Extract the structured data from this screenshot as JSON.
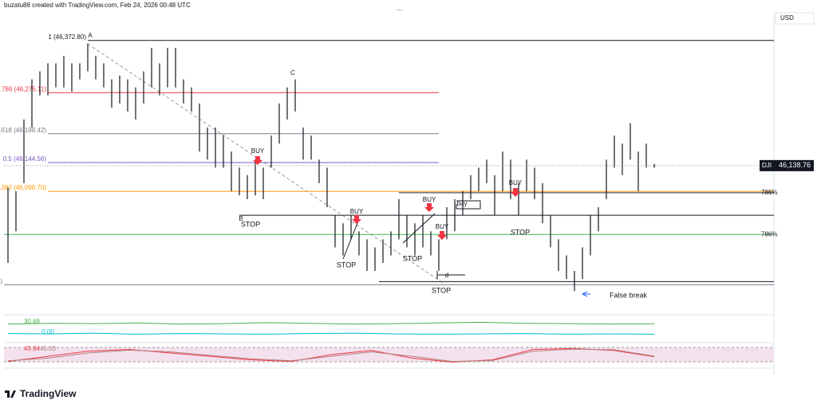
{
  "header": {
    "author_line": "buzatu88 created with TradingView.com, Feb 24, 2026 00:48 UTC",
    "currency": "USD",
    "brand": "TradingView"
  },
  "chart_data": {
    "type": "ohlc",
    "symbol": "DJI",
    "color": "#131722",
    "last_price": {
      "value": 46138.76,
      "label": "46,138.76"
    },
    "ylim": [
      45860,
      46426
    ],
    "highs": [
      46098,
      46091,
      46225,
      46300,
      46315,
      46330,
      46330,
      46344,
      46330,
      46330,
      46367,
      46344,
      46330,
      46300,
      46307,
      46300,
      46285,
      46315,
      46359,
      46330,
      46359,
      46359,
      46300,
      46285,
      46255,
      46210,
      46210,
      46195,
      46165,
      46135,
      46121,
      46150,
      46135,
      46195,
      46255,
      46285,
      46300,
      46210,
      46195,
      46150,
      46135,
      46046,
      46031,
      46046,
      46016,
      46001,
      45986,
      46001,
      46016,
      46076,
      46046,
      46031,
      46046,
      46016,
      46001,
      46061,
      46076,
      46091,
      46121,
      46135,
      46150,
      46121,
      46165,
      46150,
      46106,
      46150,
      46135,
      46106,
      46046,
      46001,
      45971,
      45942,
      45986,
      46046,
      46061,
      46150,
      46195,
      46180,
      46218,
      46165,
      46180,
      46142
    ],
    "lows": [
      45957,
      46016,
      46106,
      46210,
      46270,
      46270,
      46285,
      46285,
      46277,
      46300,
      46315,
      46300,
      46285,
      46247,
      46255,
      46240,
      46225,
      46255,
      46285,
      46270,
      46285,
      46285,
      46255,
      46240,
      46165,
      46150,
      46135,
      46135,
      46091,
      46083,
      46076,
      46083,
      46076,
      46135,
      46180,
      46225,
      46240,
      46150,
      46150,
      46106,
      46061,
      45986,
      45971,
      46001,
      45971,
      45942,
      45942,
      45957,
      45971,
      46001,
      45986,
      45971,
      45986,
      45971,
      45942,
      46001,
      46016,
      46046,
      46076,
      46091,
      46106,
      46046,
      46091,
      46076,
      46046,
      46091,
      46076,
      46031,
      45986,
      45942,
      45927,
      45904,
      45927,
      45971,
      46016,
      46076,
      46135,
      46121,
      46150,
      46091,
      46135,
      46135
    ],
    "fib_levels": [
      {
        "value": 46372.8,
        "label": "1 (46,372.80)",
        "color": "#131722"
      },
      {
        "value": 46275.11,
        "label": "0.786 (46,275.11)",
        "color": "#f23645"
      },
      {
        "value": 46198.42,
        "label": "0.618 (46,198.42)",
        "color": "#787b86"
      },
      {
        "value": 46144.56,
        "label": "0.5 (46,144.56)",
        "color": "#7e57c2"
      },
      {
        "value": 46090.7,
        "label": "0.382 (46,090.70)",
        "color": "#ff9800"
      },
      {
        "value": 45916.32,
        "label": "0 (45,916.32)",
        "color": "#787b86"
      }
    ],
    "levels": [
      {
        "value": 46046,
        "color": "#131722"
      },
      {
        "value": 46010,
        "color": "#4caf50",
        "label": "786%"
      },
      {
        "value": 46088,
        "color": "#2a2e39",
        "label": "786%"
      },
      {
        "value": 45922,
        "color": "#131722"
      }
    ],
    "annotations": [
      "A",
      "B",
      "C",
      "BUY",
      "BUY",
      "BUY",
      "BUY",
      "BUY",
      "buy",
      "STOP",
      "STOP",
      "STOP",
      "STOP",
      "STOP",
      "STOP",
      "d",
      "False break"
    ],
    "indicators": [
      {
        "ylim": [
          -20,
          50
        ],
        "series": [
          {
            "color": "#4caf50",
            "values": [
              30,
              32,
              31,
              33,
              30,
              31,
              34,
              32,
              30,
              31,
              33,
              35,
              32,
              31,
              30,
              30.68
            ],
            "last_label": "30.68"
          },
          {
            "color": "#00bcd4",
            "values": [
              2,
              1,
              3,
              0,
              2,
              1,
              0,
              2,
              3,
              1,
              0,
              1,
              2,
              0,
              1,
              0
            ],
            "last_label": "0.00"
          }
        ]
      },
      {
        "ylim": [
          20,
          80
        ],
        "series": [
          {
            "color": "#f23645",
            "values": [
              30,
              45,
              60,
              65,
              55,
              45,
              35,
              30,
              50,
              62,
              40,
              28,
              35,
              65,
              68,
              62,
              43.94
            ],
            "last_label": "43.94"
          },
          {
            "color": "#b2807a",
            "values": [
              32,
              40,
              55,
              63,
              58,
              48,
              38,
              32,
              45,
              58,
              45,
              30,
              33,
              60,
              66,
              64,
              45.53
            ],
            "last_label": "45.53"
          }
        ]
      }
    ]
  }
}
